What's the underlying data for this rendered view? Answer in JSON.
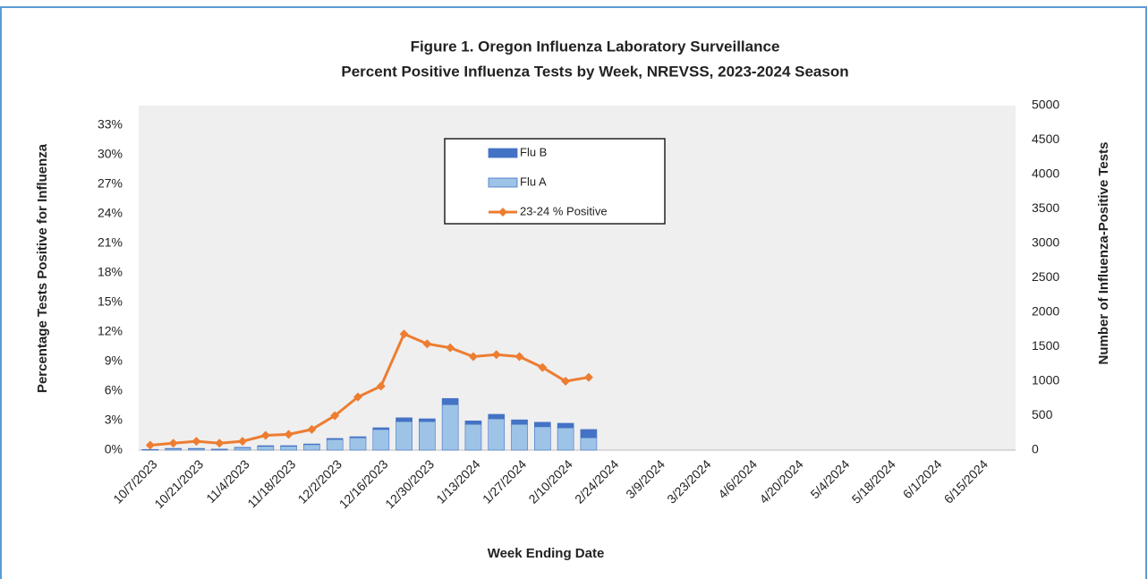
{
  "chart_data": {
    "type": "bar-line",
    "title": "Figure 1. Oregon Influenza Laboratory Surveillance",
    "subtitle": "Percent Positive Influenza Tests by Week, NREVSS, 2023-2024 Season",
    "x_label": "Week Ending Date",
    "y_label": "Percentage Tests Positive for Influenza",
    "y2_label": "Number of Influenza-Positive Tests",
    "categories": [
      "10/7/2023",
      null,
      "10/21/2023",
      null,
      "11/4/2023",
      null,
      "11/18/2023",
      null,
      "12/2/2023",
      null,
      "12/16/2023",
      null,
      "12/30/2023",
      null,
      "1/13/2024",
      null,
      "1/27/2024",
      null,
      "2/10/2024",
      null,
      "2/24/2024",
      null,
      "3/9/2024",
      null,
      "3/23/2024",
      null,
      "4/6/2024",
      null,
      "4/20/2024",
      null,
      "5/4/2024",
      null,
      "5/18/2024",
      null,
      "6/1/2024",
      null,
      "6/15/2024",
      null
    ],
    "series": [
      {
        "name": "Flu B",
        "type": "bar",
        "axis": "y2",
        "color": "#4472c4",
        "values": [
          2,
          5,
          5,
          3,
          5,
          10,
          10,
          10,
          15,
          15,
          25,
          55,
          40,
          90,
          50,
          65,
          65,
          65,
          65,
          120,
          null,
          null,
          null,
          null,
          null,
          null,
          null,
          null,
          null,
          null,
          null,
          null,
          null,
          null,
          null,
          null,
          null,
          null
        ]
      },
      {
        "name": "Flu A",
        "type": "bar",
        "axis": "y2",
        "color": "#9dc3e6",
        "values": [
          8,
          20,
          20,
          12,
          35,
          55,
          55,
          80,
          155,
          180,
          300,
          415,
          415,
          660,
          375,
          455,
          375,
          340,
          325,
          180,
          null,
          null,
          null,
          null,
          null,
          null,
          null,
          null,
          null,
          null,
          null,
          null,
          null,
          null,
          null,
          null,
          null,
          null
        ]
      },
      {
        "name": "23-24 % Positive",
        "type": "line",
        "axis": "y",
        "color": "#ed7d31",
        "values": [
          0.5,
          0.7,
          0.9,
          0.7,
          0.9,
          1.5,
          1.6,
          2.1,
          3.5,
          5.4,
          6.5,
          11.8,
          10.8,
          10.4,
          9.5,
          9.7,
          9.5,
          8.4,
          7.0,
          7.4,
          null,
          null,
          null,
          null,
          null,
          null,
          null,
          null,
          null,
          null,
          null,
          null,
          null,
          null,
          null,
          null,
          null,
          null
        ]
      }
    ],
    "ylim": [
      0,
      35
    ],
    "yticks": [
      {
        "value": 0,
        "label": "0%"
      },
      {
        "value": 3,
        "label": "3%"
      },
      {
        "value": 6,
        "label": "6%"
      },
      {
        "value": 9,
        "label": "9%"
      },
      {
        "value": 12,
        "label": "12%"
      },
      {
        "value": 15,
        "label": "15%"
      },
      {
        "value": 18,
        "label": "18%"
      },
      {
        "value": 21,
        "label": "21%"
      },
      {
        "value": 24,
        "label": "24%"
      },
      {
        "value": 27,
        "label": "27%"
      },
      {
        "value": 30,
        "label": "30%"
      },
      {
        "value": 33,
        "label": "33%"
      }
    ],
    "y2lim": [
      0,
      5000
    ],
    "y2ticks": [
      0,
      500,
      1000,
      1500,
      2000,
      2500,
      3000,
      3500,
      4000,
      4500,
      5000
    ]
  }
}
